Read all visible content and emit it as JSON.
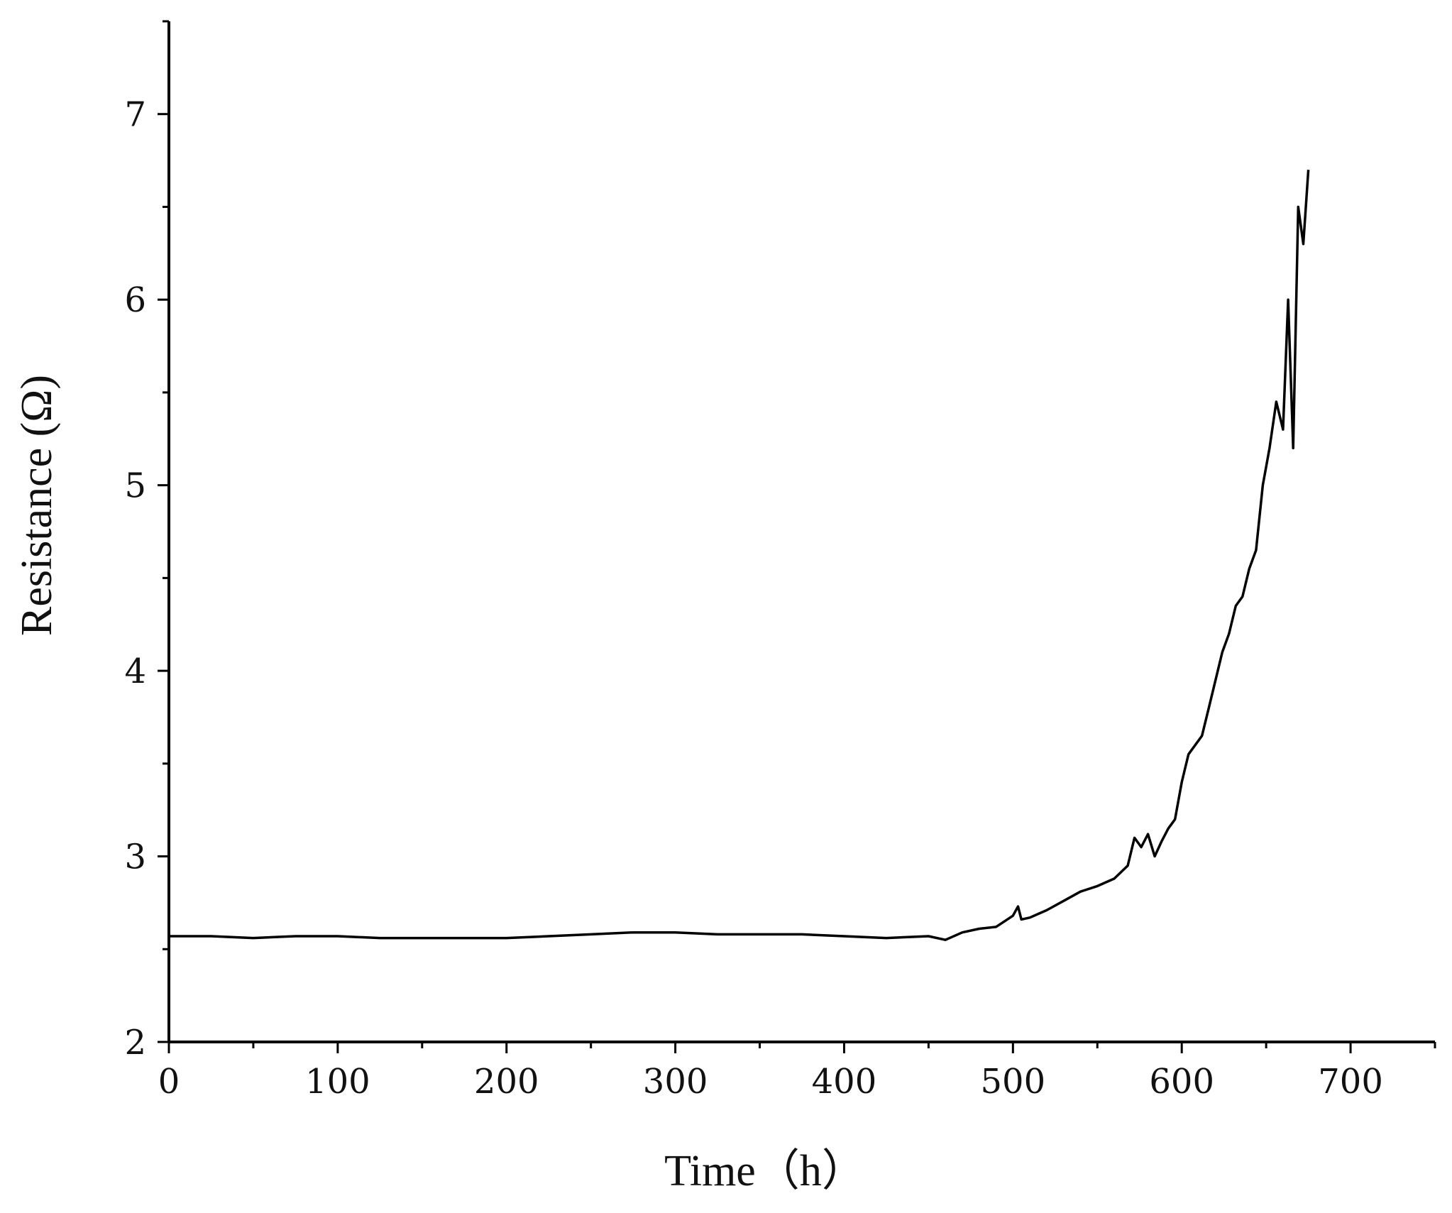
{
  "chart_data": {
    "type": "line",
    "title": "",
    "xlabel": "Time（h）",
    "ylabel": "Resistance (Ω)",
    "xlim": [
      0,
      750
    ],
    "ylim": [
      2,
      7.5
    ],
    "x_ticks": [
      "0",
      "100",
      "200",
      "300",
      "400",
      "500",
      "600",
      "700"
    ],
    "y_ticks": [
      "2",
      "3",
      "4",
      "5",
      "6",
      "7"
    ],
    "grid": false,
    "legend": "none",
    "line_color": "#000000",
    "series": [
      {
        "x": [
          0,
          25,
          50,
          75,
          100,
          125,
          150,
          175,
          200,
          225,
          250,
          275,
          300,
          325,
          350,
          375,
          400,
          425,
          450,
          460,
          470,
          480,
          490,
          500,
          503,
          505,
          510,
          520,
          530,
          540,
          550,
          560,
          568,
          572,
          576,
          580,
          584,
          588,
          592,
          596,
          600,
          604,
          608,
          612,
          616,
          620,
          624,
          628,
          632,
          636,
          640,
          644,
          648,
          652,
          656,
          660,
          663,
          666,
          669,
          672,
          675
        ],
        "y": [
          2.57,
          2.57,
          2.56,
          2.57,
          2.57,
          2.56,
          2.56,
          2.56,
          2.56,
          2.57,
          2.58,
          2.59,
          2.59,
          2.58,
          2.58,
          2.58,
          2.57,
          2.56,
          2.57,
          2.55,
          2.59,
          2.61,
          2.62,
          2.68,
          2.73,
          2.66,
          2.67,
          2.71,
          2.76,
          2.81,
          2.84,
          2.88,
          2.95,
          3.1,
          3.05,
          3.12,
          3.0,
          3.08,
          3.15,
          3.2,
          3.4,
          3.55,
          3.6,
          3.65,
          3.8,
          3.95,
          4.1,
          4.2,
          4.35,
          4.4,
          4.55,
          4.65,
          5.0,
          5.2,
          5.45,
          5.3,
          6.0,
          5.2,
          6.5,
          6.3,
          6.7
        ]
      }
    ]
  }
}
